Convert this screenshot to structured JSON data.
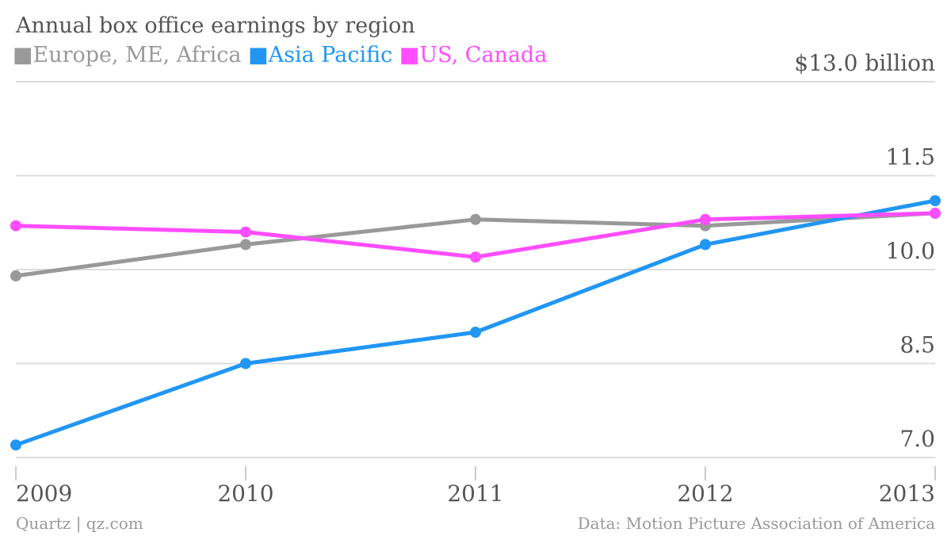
{
  "chart_data": {
    "type": "line",
    "title": "Annual box office earnings by region",
    "categories": [
      "2009",
      "2010",
      "2011",
      "2012",
      "2013"
    ],
    "series": [
      {
        "name": "Europe, ME, Africa",
        "color": "#999999",
        "values": [
          9.9,
          10.4,
          10.8,
          10.7,
          10.9
        ]
      },
      {
        "name": "Asia Pacific",
        "color": "#2196f3",
        "values": [
          7.2,
          8.5,
          9.0,
          10.4,
          11.1
        ]
      },
      {
        "name": "US, Canada",
        "color": "#ff4dff",
        "values": [
          10.7,
          10.6,
          10.2,
          10.8,
          10.9
        ]
      }
    ],
    "y_ticks": [
      {
        "value": 7.0,
        "label": "7.0"
      },
      {
        "value": 8.5,
        "label": "8.5"
      },
      {
        "value": 10.0,
        "label": "10.0"
      },
      {
        "value": 11.5,
        "label": "11.5"
      },
      {
        "value": 13.0,
        "label": "$13.0 billion"
      }
    ],
    "ylim": [
      7.0,
      13.0
    ],
    "grid": true,
    "legend_position": "top-left",
    "legend_marker": "■"
  },
  "footer": {
    "source_left": "Quartz | qz.com",
    "source_right": "Data: Motion Picture Association of America"
  }
}
